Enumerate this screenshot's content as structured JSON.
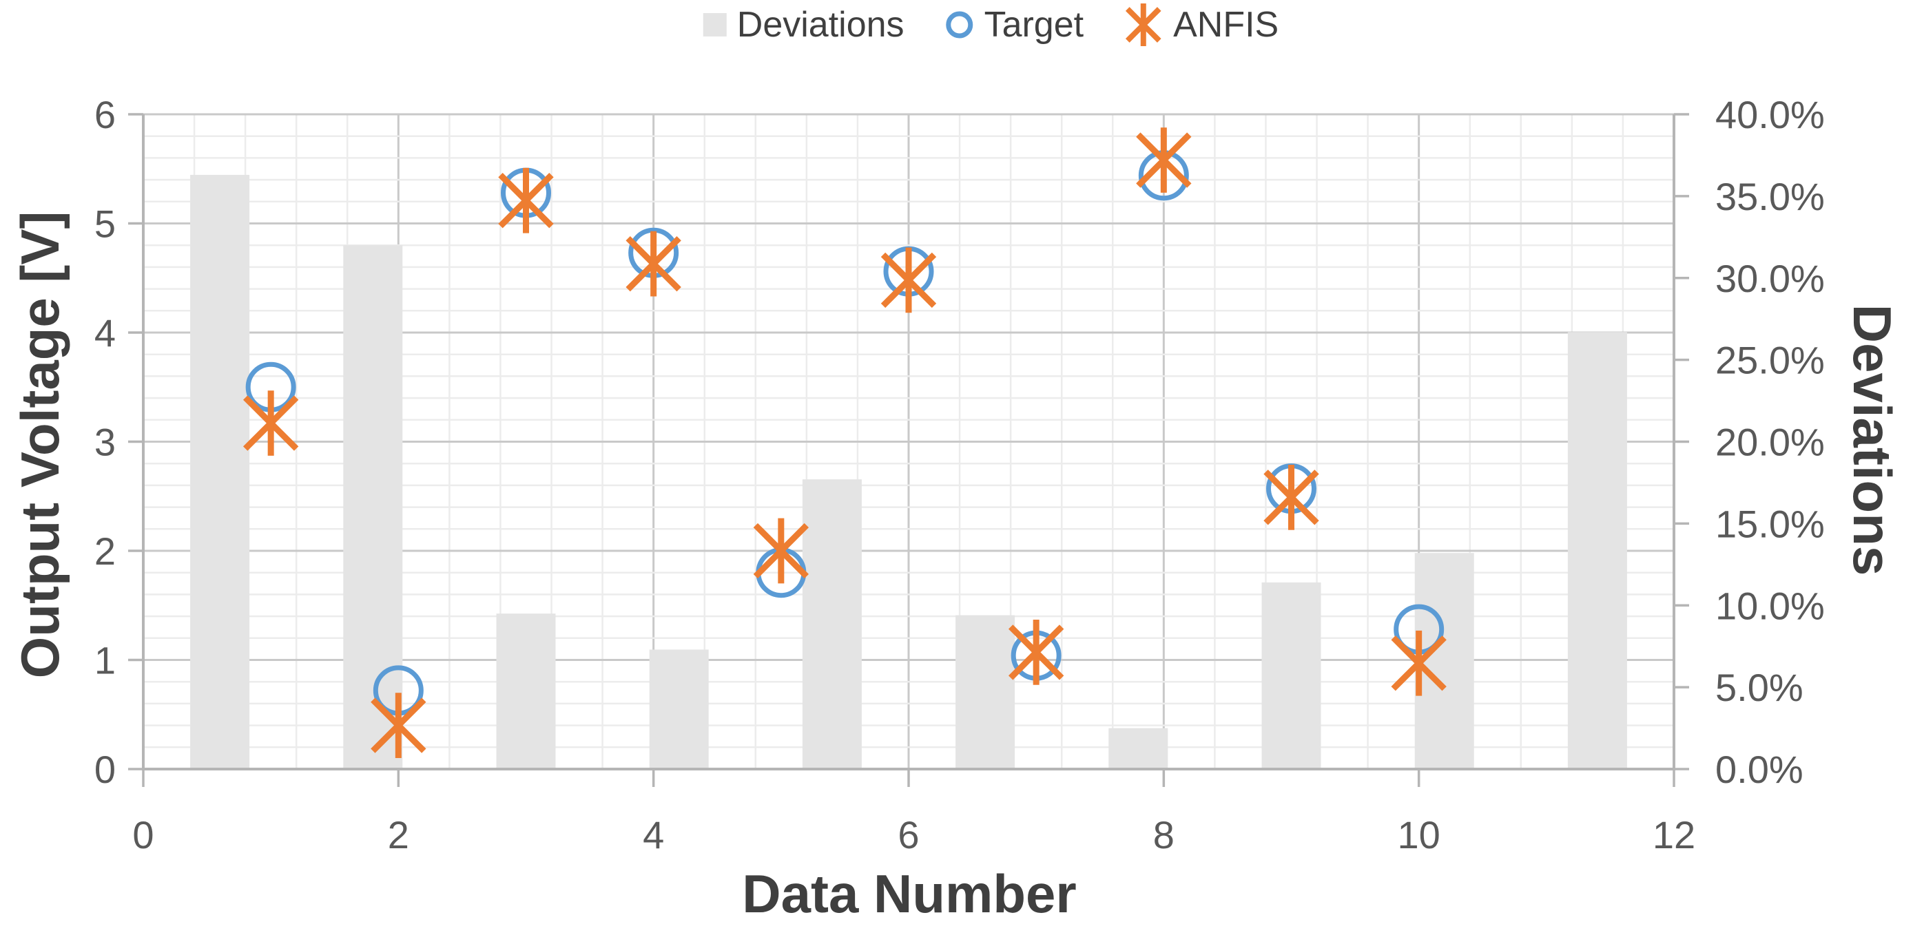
{
  "chart_data": {
    "type": "combo",
    "title": "",
    "xlabel": "Data Number",
    "ylabel_left": "Output Voltage [V]",
    "ylabel_right": "Deviations",
    "x_axis": {
      "min": 0,
      "max": 12,
      "tick_step": 2,
      "tick_labels": [
        "0",
        "2",
        "4",
        "6",
        "8",
        "10",
        "12"
      ]
    },
    "y_left_axis": {
      "min": 0,
      "max": 6,
      "tick_step": 1,
      "tick_labels": [
        "0",
        "1",
        "2",
        "3",
        "4",
        "5",
        "6"
      ]
    },
    "y_right_axis": {
      "min_percent": 0,
      "max_percent": 40,
      "tick_step_percent": 5,
      "tick_labels": [
        "0.0%",
        "5.0%",
        "10.0%",
        "15.0%",
        "20.0%",
        "25.0%",
        "30.0%",
        "35.0%",
        "40.0%"
      ]
    },
    "grid": {
      "minor": true,
      "major": true,
      "x_minor_per_major": 5,
      "y_minor_per_major": 5
    },
    "legend_position": "top-center",
    "series": [
      {
        "name": "Deviations",
        "type": "bar",
        "axis": "right",
        "marker": "gray-square",
        "categories": [
          1,
          2,
          3,
          4,
          5,
          6,
          7,
          8,
          9,
          10
        ],
        "x_centers": [
          0.6,
          1.8,
          3.0,
          4.2,
          5.4,
          6.6,
          7.8,
          9.0,
          10.2,
          11.4
        ],
        "values_percent": [
          36.3,
          32.0,
          9.5,
          7.3,
          17.7,
          9.4,
          2.5,
          11.4,
          13.2,
          26.7
        ]
      },
      {
        "name": "Target",
        "type": "scatter",
        "axis": "left",
        "marker": "blue-circle",
        "x": [
          1,
          2,
          3,
          4,
          5,
          6,
          7,
          8,
          9,
          10
        ],
        "values_volts": [
          3.5,
          0.72,
          5.28,
          4.73,
          1.8,
          4.56,
          1.04,
          5.44,
          2.57,
          1.28
        ]
      },
      {
        "name": "ANFIS",
        "type": "scatter",
        "axis": "left",
        "marker": "orange-star",
        "x": [
          1,
          2,
          3,
          4,
          5,
          6,
          7,
          8,
          9,
          10
        ],
        "values_volts": [
          3.17,
          0.4,
          5.21,
          4.63,
          2.0,
          4.48,
          1.07,
          5.58,
          2.49,
          0.97
        ]
      }
    ],
    "colors": {
      "bar_fill": "#e4e4e4",
      "target_stroke": "#5b9bd5",
      "anfis_stroke": "#ed7d31",
      "grid_minor": "#ececec",
      "grid_major": "#c9c9c9",
      "axis_line": "#b5b5b5",
      "tick_text": "#595959",
      "title_text": "#3f3f3f"
    },
    "legend": [
      {
        "label": "Deviations",
        "marker": "gray-square"
      },
      {
        "label": "Target",
        "marker": "blue-circle"
      },
      {
        "label": "ANFIS",
        "marker": "orange-star"
      }
    ]
  }
}
